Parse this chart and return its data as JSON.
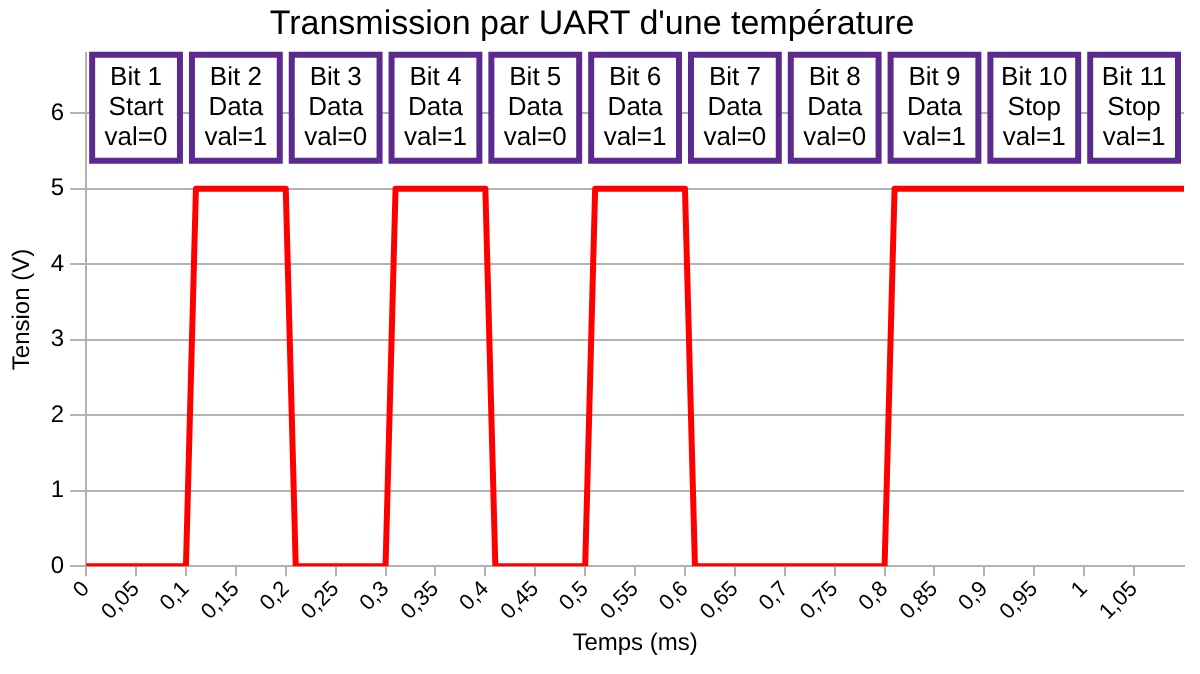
{
  "chart_data": {
    "type": "line",
    "title": "Transmission par UART d'une température",
    "xlabel": "Temps (ms)",
    "ylabel": "Tension (V)",
    "series": [
      {
        "color": "#ff0000",
        "x": [
          0,
          0.1,
          0.11,
          0.2,
          0.21,
          0.3,
          0.31,
          0.4,
          0.41,
          0.5,
          0.51,
          0.6,
          0.61,
          0.8,
          0.81,
          1.1
        ],
        "values": [
          0,
          0,
          5,
          5,
          0,
          0,
          5,
          5,
          0,
          0,
          5,
          5,
          0,
          0,
          5,
          5
        ]
      }
    ],
    "xlim": [
      0,
      1.1
    ],
    "ylim": [
      0,
      6.8
    ],
    "xticks": [
      0,
      {
        "value": 0.05,
        "label": "0,05"
      },
      {
        "value": 0.1,
        "label": "0,1"
      },
      {
        "value": 0.15,
        "label": "0,15"
      },
      {
        "value": 0.2,
        "label": "0,2"
      },
      {
        "value": 0.25,
        "label": "0,25"
      },
      {
        "value": 0.3,
        "label": "0,3"
      },
      {
        "value": 0.35,
        "label": "0,35"
      },
      {
        "value": 0.4,
        "label": "0,4"
      },
      {
        "value": 0.45,
        "label": "0,45"
      },
      {
        "value": 0.5,
        "label": "0,5"
      },
      {
        "value": 0.55,
        "label": "0,55"
      },
      {
        "value": 0.6,
        "label": "0,6"
      },
      {
        "value": 0.65,
        "label": "0,65"
      },
      {
        "value": 0.7,
        "label": "0,7"
      },
      {
        "value": 0.75,
        "label": "0,75"
      },
      {
        "value": 0.8,
        "label": "0,8"
      },
      {
        "value": 0.85,
        "label": "0,85"
      },
      {
        "value": 0.9,
        "label": "0,9"
      },
      {
        "value": 0.95,
        "label": "0,95"
      },
      1,
      {
        "value": 1.05,
        "label": "1,05"
      }
    ],
    "yticks": [
      0,
      1,
      2,
      3,
      4,
      5,
      6
    ],
    "grid": "y",
    "legend": false,
    "marker": "none",
    "line_style": "solid",
    "annotations": [
      "Bit 1\nStart\nval=0",
      "Bit 2\nData\nval=1",
      "Bit 3\nData\nval=0",
      "Bit 4\nData\nval=1",
      "Bit 5\nData\nval=0",
      "Bit 6\nData\nval=1",
      "Bit 7\nData\nval=0",
      "Bit 8\nData\nval=0",
      "Bit 9\nData\nval=1",
      "Bit 10\nStop\nval=1",
      "Bit 11\nStop\nval=1"
    ]
  }
}
